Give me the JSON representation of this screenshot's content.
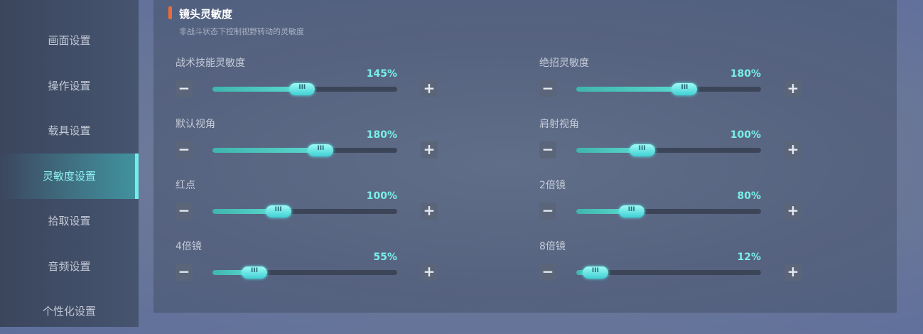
{
  "sidebar": {
    "items": [
      "画面设置",
      "操作设置",
      "载具设置",
      "灵敏度设置",
      "拾取设置",
      "音频设置",
      "个性化设置"
    ],
    "active": 3
  },
  "panel": {
    "title": "镜头灵敏度",
    "subtitle": "非战斗状态下控制视野转动的灵敏度",
    "slider_range": [
      0,
      300
    ],
    "sliders": [
      {
        "label": "战术技能灵敏度",
        "value": 145,
        "value_label": "145%"
      },
      {
        "label": "绝招灵敏度",
        "value": 180,
        "value_label": "180%"
      },
      {
        "label": "默认视角",
        "value": 180,
        "value_label": "180%"
      },
      {
        "label": "肩射视角",
        "value": 100,
        "value_label": "100%"
      },
      {
        "label": "红点",
        "value": 100,
        "value_label": "100%"
      },
      {
        "label": "2倍镜",
        "value": 80,
        "value_label": "80%"
      },
      {
        "label": "4倍镜",
        "value": 55,
        "value_label": "55%"
      },
      {
        "label": "8倍镜",
        "value": 12,
        "value_label": "12%"
      }
    ]
  }
}
